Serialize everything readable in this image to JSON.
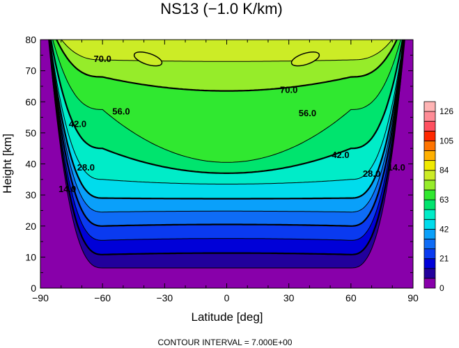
{
  "chart_data": {
    "type": "contour",
    "title": "NS13 (−1.0 K/km)",
    "xlabel": "Latitude [deg]",
    "ylabel": "Height [km]",
    "xlim": [
      -90,
      90
    ],
    "ylim": [
      0,
      80
    ],
    "xticks": [
      -90,
      -60,
      -30,
      0,
      30,
      60,
      90
    ],
    "xtick_labels": [
      "−90",
      "−60",
      "−30",
      "0",
      "30",
      "60",
      "90"
    ],
    "yticks": [
      0,
      10,
      20,
      30,
      40,
      50,
      60,
      70,
      80
    ],
    "ytick_labels": [
      "0",
      "10",
      "20",
      "30",
      "40",
      "50",
      "60",
      "70",
      "80"
    ],
    "contour_interval": 7.0,
    "footer": "CONTOUR INTERVAL = 7.000E+00",
    "levels": [
      7,
      14,
      21,
      28,
      35,
      42,
      49,
      56,
      63,
      70,
      77
    ],
    "level_boundaries": {
      "height_at_equator_km": [
        6.5,
        11.3,
        16,
        20.5,
        24.8,
        28.8,
        33.5,
        37,
        40.5,
        63.5,
        73
      ],
      "height_at_minus60_km": [
        6.5,
        10.8,
        15.4,
        20,
        24.5,
        29,
        35,
        45,
        57.5,
        68,
        73.5
      ]
    },
    "contour_labels": [
      {
        "text": "70.0",
        "lat": -60,
        "h": 74
      },
      {
        "text": "70.0",
        "lat": 30,
        "h": 64
      },
      {
        "text": "56.0",
        "lat": -51,
        "h": 57
      },
      {
        "text": "56.0",
        "lat": 39,
        "h": 56.5
      },
      {
        "text": "42.0",
        "lat": -72,
        "h": 53
      },
      {
        "text": "42.0",
        "lat": 55,
        "h": 43
      },
      {
        "text": "28.0",
        "lat": -68,
        "h": 39
      },
      {
        "text": "28.0",
        "lat": 70,
        "h": 37
      },
      {
        "text": "14.0",
        "lat": -77,
        "h": 32
      },
      {
        "text": "14.0",
        "lat": 82,
        "h": 39
      }
    ],
    "colorbar": {
      "tick_labels": [
        "0",
        "21",
        "42",
        "63",
        "84",
        "105",
        "126"
      ],
      "colors": [
        "#8800aa",
        "#22009c",
        "#0000d8",
        "#0a3af0",
        "#0e6cf6",
        "#0aa0fa",
        "#00dcec",
        "#00ecc8",
        "#00e46e",
        "#30e830",
        "#96ec2a",
        "#ccec26",
        "#f0ea00",
        "#ffb000",
        "#ff7400",
        "#ff2800",
        "#ff5060",
        "#ff8c96",
        "#ffb4b4"
      ]
    }
  }
}
